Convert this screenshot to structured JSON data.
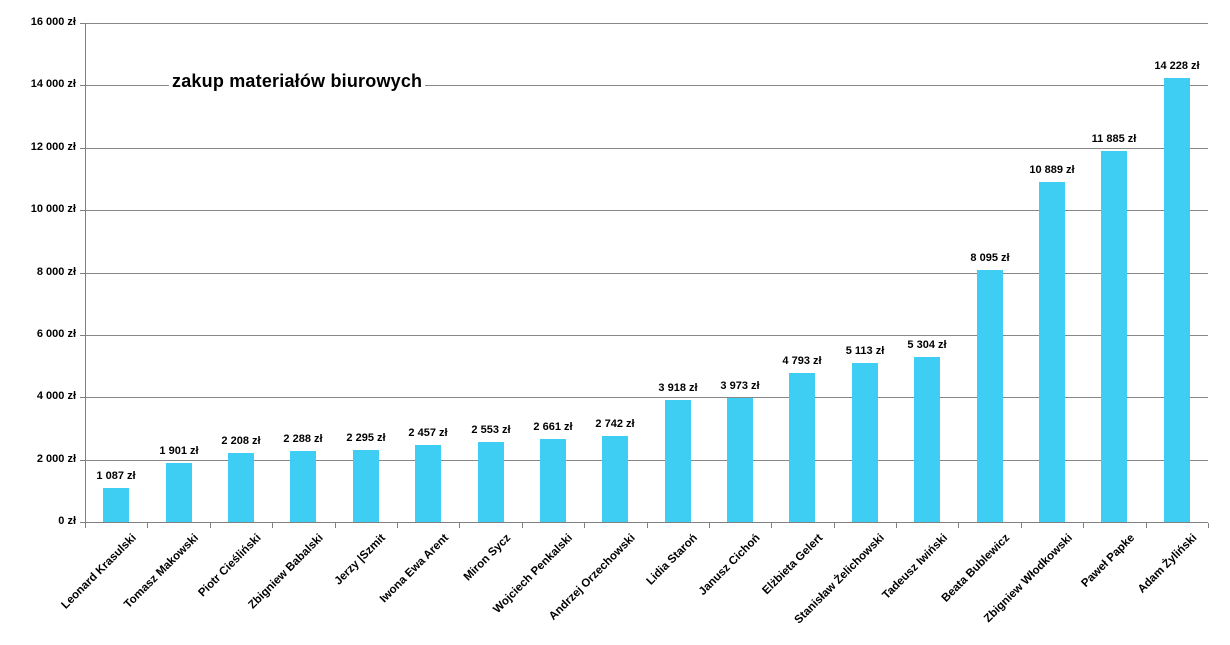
{
  "chart_data": {
    "type": "bar",
    "title": "zakup materiałów biurowych",
    "categories": [
      "Leonard Krasulski",
      "Tomasz Makowski",
      "Piotr Cieśliński",
      "Zbigniew Babalski",
      "Jerzy |Szmit",
      "Iwona Ewa Arent",
      "Miron Sycz",
      "Wojciech Penkalski",
      "Andrzej Orzechowski",
      "Lidia Staroń",
      "Janusz Cichoń",
      "Elżbieta Gelert",
      "Stanisław Żelichowski",
      "Tadeusz Iwiński",
      "Beata Bublewicz",
      "Zbigniew Włodkowski",
      "Paweł Papke",
      "Adam Żyliński"
    ],
    "values": [
      1087,
      1901,
      2208,
      2288,
      2295,
      2457,
      2553,
      2661,
      2742,
      3918,
      3973,
      4793,
      5113,
      5304,
      8095,
      10889,
      11885,
      14228
    ],
    "value_labels": [
      "1 087 zł",
      "1 901 zł",
      "2 208 zł",
      "2 288 zł",
      "2 295 zł",
      "2 457 zł",
      "2 553 zł",
      "2 661 zł",
      "2 742 zł",
      "3 918 zł",
      "3 973 zł",
      "4 793 zł",
      "5 113 zł",
      "5 304 zł",
      "8 095 zł",
      "10 889 zł",
      "11 885 zł",
      "14 228 zł"
    ],
    "y_tick_labels": [
      "0 zł",
      "2 000 zł",
      "4 000 zł",
      "6 000 zł",
      "8 000 zł",
      "10 000 zł",
      "12 000 zł",
      "14 000 zł",
      "16 000 zł"
    ],
    "ylim": [
      0,
      16000
    ],
    "y_step": 2000,
    "xlabel": "",
    "ylabel": "",
    "grid": true,
    "legend_position": "none",
    "colors": {
      "bar": "#3ECDF3",
      "gridline": "#878787",
      "axis": "#808080",
      "text": "#000000",
      "background": "#FFFFFF"
    }
  }
}
